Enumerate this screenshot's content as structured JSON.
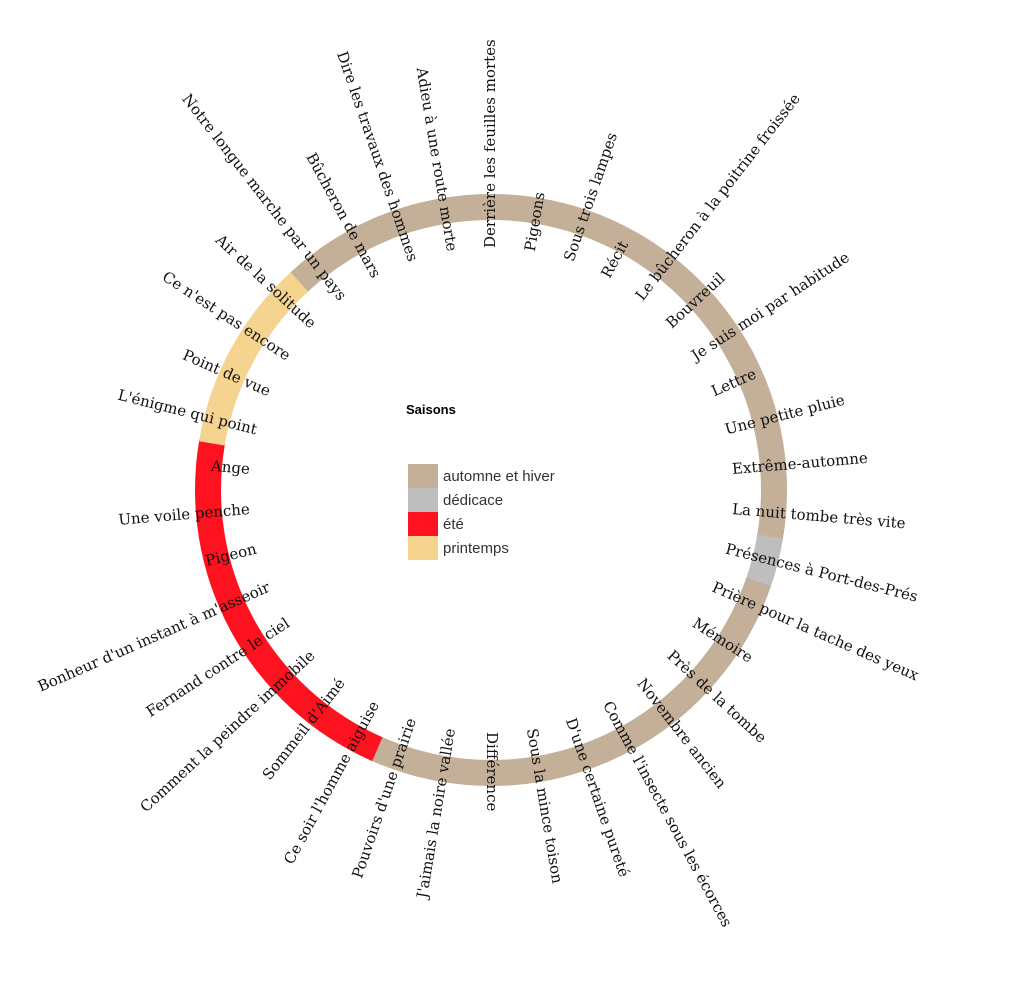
{
  "colors": {
    "automne et hiver": "#c4af98",
    "dédicace": "#bebebe",
    "été": "#ff121f",
    "printemps": "#f4d48f"
  },
  "chart_data": {
    "type": "radial-segment-ring",
    "title": "",
    "legend": {
      "title": "Saisons",
      "placement": "center",
      "entries": [
        "automne et hiver",
        "dédicace",
        "été",
        "printemps"
      ]
    },
    "poems": [
      {
        "title": "Derrière les feuilles mortes",
        "season": "automne et hiver"
      },
      {
        "title": "Pigeons",
        "season": "automne et hiver"
      },
      {
        "title": "Sous trois lampes",
        "season": "automne et hiver"
      },
      {
        "title": "Récit",
        "season": "automne et hiver"
      },
      {
        "title": "Le bûcheron à la poitrine froissée",
        "season": "automne et hiver"
      },
      {
        "title": "Bouvreuil",
        "season": "automne et hiver"
      },
      {
        "title": "Je suis moi par habitude",
        "season": "automne et hiver"
      },
      {
        "title": "Lettre",
        "season": "automne et hiver"
      },
      {
        "title": "Une petite pluie",
        "season": "automne et hiver"
      },
      {
        "title": "Extrême-automne",
        "season": "automne et hiver"
      },
      {
        "title": "La nuit tombe très vite",
        "season": "automne et hiver"
      },
      {
        "title": "Présences à Port-des-Prés",
        "season": "dédicace"
      },
      {
        "title": "Prière pour la tache des yeux",
        "season": "automne et hiver"
      },
      {
        "title": "Mémoire",
        "season": "automne et hiver"
      },
      {
        "title": "Près de la tombe",
        "season": "automne et hiver"
      },
      {
        "title": "Novembre ancien",
        "season": "automne et hiver"
      },
      {
        "title": "Comme l'insecte sous les écorces",
        "season": "automne et hiver"
      },
      {
        "title": "D'une certaine pureté",
        "season": "automne et hiver"
      },
      {
        "title": "Sous la mince toison",
        "season": "automne et hiver"
      },
      {
        "title": "Différence",
        "season": "automne et hiver"
      },
      {
        "title": "J'aimais la noire vallée",
        "season": "automne et hiver"
      },
      {
        "title": "Pouvoirs d'une prairie",
        "season": "automne et hiver"
      },
      {
        "title": "Ce soir l'homme aiguise",
        "season": "été"
      },
      {
        "title": "Sommeil d'Aimé",
        "season": "été"
      },
      {
        "title": "Comment la peindre immobile",
        "season": "été"
      },
      {
        "title": "Fernand contre le ciel",
        "season": "été"
      },
      {
        "title": "Bonheur d'un instant à m'asseoir",
        "season": "été"
      },
      {
        "title": "Pigeon",
        "season": "été"
      },
      {
        "title": "Une voile penche",
        "season": "été"
      },
      {
        "title": "Ange",
        "season": "été"
      },
      {
        "title": "L'énigme qui point",
        "season": "printemps"
      },
      {
        "title": "Point de vue",
        "season": "printemps"
      },
      {
        "title": "Ce n'est pas encore",
        "season": "printemps"
      },
      {
        "title": "Air de la solitude",
        "season": "printemps"
      },
      {
        "title": "Notre longue marche par un pays",
        "season": "automne et hiver"
      },
      {
        "title": "Bûcheron de mars",
        "season": "automne et hiver"
      },
      {
        "title": "Dire les travaux des hommes",
        "season": "automne et hiver"
      },
      {
        "title": "Adieu à une route morte",
        "season": "automne et hiver"
      }
    ]
  }
}
